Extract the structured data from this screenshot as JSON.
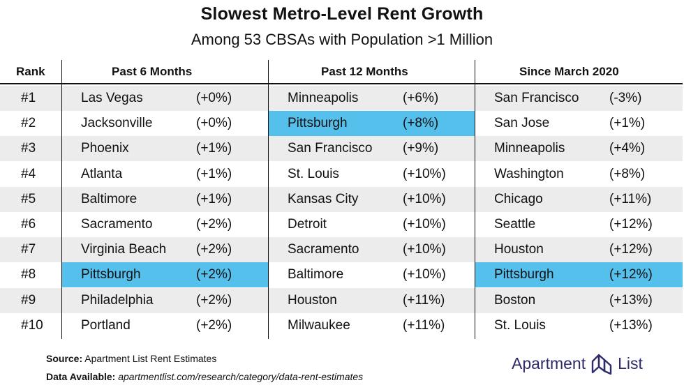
{
  "title": "Slowest Metro-Level Rent Growth",
  "subtitle": "Among 53 CBSAs with Population >1 Million",
  "headers": {
    "rank": "Rank",
    "col1": "Past 6 Months",
    "col2": "Past 12 Months",
    "col3": "Since March 2020"
  },
  "rows": [
    {
      "rank": "#1",
      "c1_city": "Las Vegas",
      "c1_val": "(+0%)",
      "c2_city": "Minneapolis",
      "c2_val": "(+6%)",
      "c3_city": "San Francisco",
      "c3_val": "(-3%)"
    },
    {
      "rank": "#2",
      "c1_city": "Jacksonville",
      "c1_val": "(+0%)",
      "c2_city": "Pittsburgh",
      "c2_val": "(+8%)",
      "c3_city": "San Jose",
      "c3_val": "(+1%)"
    },
    {
      "rank": "#3",
      "c1_city": "Phoenix",
      "c1_val": "(+1%)",
      "c2_city": "San Francisco",
      "c2_val": "(+9%)",
      "c3_city": "Minneapolis",
      "c3_val": "(+4%)"
    },
    {
      "rank": "#4",
      "c1_city": "Atlanta",
      "c1_val": "(+1%)",
      "c2_city": "St. Louis",
      "c2_val": "(+10%)",
      "c3_city": "Washington",
      "c3_val": "(+8%)"
    },
    {
      "rank": "#5",
      "c1_city": "Baltimore",
      "c1_val": "(+1%)",
      "c2_city": "Kansas City",
      "c2_val": "(+10%)",
      "c3_city": "Chicago",
      "c3_val": "(+11%)"
    },
    {
      "rank": "#6",
      "c1_city": "Sacramento",
      "c1_val": "(+2%)",
      "c2_city": "Detroit",
      "c2_val": "(+10%)",
      "c3_city": "Seattle",
      "c3_val": "(+12%)"
    },
    {
      "rank": "#7",
      "c1_city": "Virginia Beach",
      "c1_val": "(+2%)",
      "c2_city": "Sacramento",
      "c2_val": "(+10%)",
      "c3_city": "Houston",
      "c3_val": "(+12%)"
    },
    {
      "rank": "#8",
      "c1_city": "Pittsburgh",
      "c1_val": "(+2%)",
      "c2_city": "Baltimore",
      "c2_val": "(+10%)",
      "c3_city": "Pittsburgh",
      "c3_val": "(+12%)"
    },
    {
      "rank": "#9",
      "c1_city": "Philadelphia",
      "c1_val": "(+2%)",
      "c2_city": "Houston",
      "c2_val": "(+11%)",
      "c3_city": "Boston",
      "c3_val": "(+13%)"
    },
    {
      "rank": "#10",
      "c1_city": "Portland",
      "c1_val": "(+2%)",
      "c2_city": "Milwaukee",
      "c2_val": "(+11%)",
      "c3_city": "St. Louis",
      "c3_val": "(+13%)"
    }
  ],
  "highlight_city": "Pittsburgh",
  "colors": {
    "highlight": "#56c0ec",
    "row_shade": "#ececec",
    "logo": "#2e2b6b"
  },
  "footer": {
    "source_label": "Source:",
    "source_text": " Apartment List Rent Estimates",
    "data_label": "Data Available:",
    "data_text": " apartmentlist.com/research/category/data-rent-estimates"
  },
  "logo": {
    "word1": "Apartment",
    "word2": "List",
    "icon": "apartment-list-logo-icon"
  }
}
